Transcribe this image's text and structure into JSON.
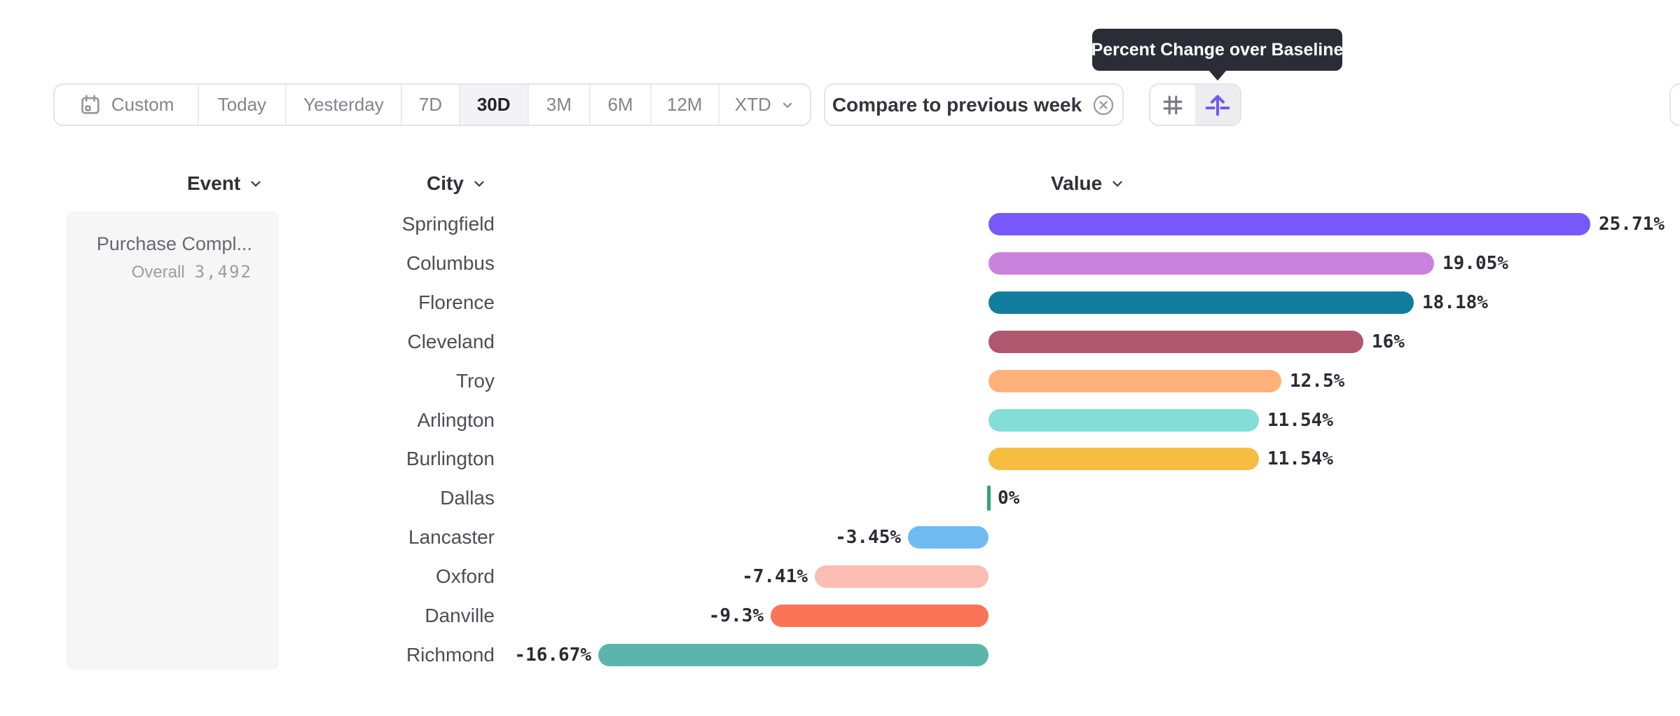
{
  "tooltip": {
    "text": "Percent Change over Baseline",
    "bg": "#2b2d36"
  },
  "toolbar": {
    "date_ranges": [
      {
        "label": "Custom",
        "icon": "calendar",
        "selected": false
      },
      {
        "label": "Today",
        "selected": false
      },
      {
        "label": "Yesterday",
        "selected": false
      },
      {
        "label": "7D",
        "selected": false
      },
      {
        "label": "30D",
        "selected": true
      },
      {
        "label": "3M",
        "selected": false
      },
      {
        "label": "6M",
        "selected": false
      },
      {
        "label": "12M",
        "selected": false
      },
      {
        "label": "XTD",
        "selected": false,
        "chevron": true
      }
    ],
    "compare_button": {
      "label": "Compare to previous week",
      "icon": "close-circle"
    },
    "view_toggle": [
      {
        "icon": "hash",
        "selected": false,
        "color": "#7b7b83"
      },
      {
        "icon": "baseline-arrow",
        "selected": true,
        "color": "#6f5bf0"
      }
    ]
  },
  "columns": [
    {
      "label": "Event"
    },
    {
      "label": "City"
    },
    {
      "label": "Value"
    }
  ],
  "event_panel": {
    "title": "Purchase Compl...",
    "subtitle_label": "Overall",
    "subtitle_value": "3,492"
  },
  "chart_data": {
    "type": "bar",
    "orientation": "horizontal",
    "title": "Percent Change over Baseline",
    "value_unit": "%",
    "xlim": [
      -16.67,
      25.71
    ],
    "categories": [
      "Springfield",
      "Columbus",
      "Florence",
      "Cleveland",
      "Troy",
      "Arlington",
      "Burlington",
      "Dallas",
      "Lancaster",
      "Oxford",
      "Danville",
      "Richmond"
    ],
    "values": [
      25.71,
      19.05,
      18.18,
      16,
      12.5,
      11.54,
      11.54,
      0,
      -3.45,
      -7.41,
      -9.3,
      -16.67
    ],
    "labels": [
      "25.71%",
      "19.05%",
      "18.18%",
      "16%",
      "12.5%",
      "11.54%",
      "11.54%",
      "0%",
      "-3.45%",
      "-7.41%",
      "-9.3%",
      "-16.67%"
    ],
    "colors": [
      "#7857fb",
      "#ca83dc",
      "#137d9d",
      "#af576e",
      "#feb178",
      "#82ded7",
      "#f6bd41",
      "#30a673",
      "#70bbf2",
      "#fcbdb4",
      "#fb7457",
      "#5cb5ab"
    ]
  }
}
